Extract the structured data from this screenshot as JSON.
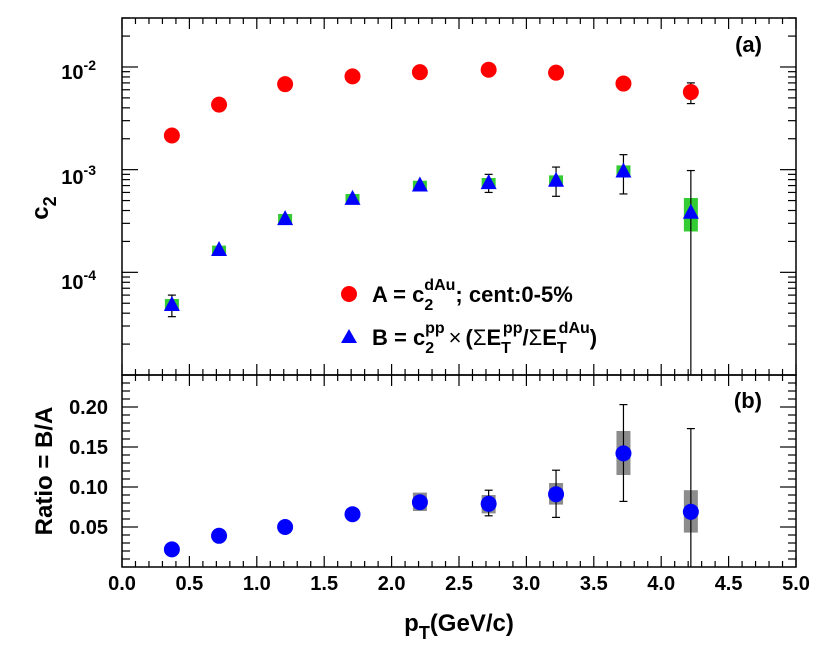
{
  "chart_data": [
    {
      "panel": "(a)",
      "type": "scatter",
      "y_scale": "log",
      "ylabel": "c",
      "ylabel_sub": "2",
      "ylim": [
        1e-05,
        0.03
      ],
      "xlim": [
        0,
        5.0
      ],
      "y_tick_labels": [
        {
          "value": 0.0001,
          "base": "10",
          "exp": "-4"
        },
        {
          "value": 0.001,
          "base": "10",
          "exp": "-3"
        },
        {
          "value": 0.01,
          "base": "10",
          "exp": "-2"
        }
      ],
      "series": [
        {
          "name": "A",
          "legend": {
            "lhs": "A = c",
            "sub": "2",
            "sup": "dAu",
            "rest": "; cent:0-5%"
          },
          "marker": "circle",
          "color": "#ff0000",
          "x": [
            0.37,
            0.72,
            1.21,
            1.71,
            2.21,
            2.72,
            3.22,
            3.72,
            4.22
          ],
          "y": [
            0.00215,
            0.0043,
            0.0068,
            0.0081,
            0.0089,
            0.0094,
            0.0088,
            0.0069,
            0.0057
          ],
          "err_lo": [
            null,
            null,
            null,
            null,
            null,
            null,
            null,
            null,
            0.0044
          ],
          "err_hi": [
            null,
            null,
            null,
            null,
            null,
            null,
            null,
            null,
            0.007
          ]
        },
        {
          "name": "B",
          "legend": {
            "lhs": "B = c",
            "sub": "2",
            "sup": "pp",
            "times": "×",
            "paren_open": "(",
            "sigma": "Σ",
            "e1": "E",
            "e1_sub": "T",
            "e1_sup": "pp",
            "slash": "/",
            "e2": "E",
            "e2_sub": "T",
            "e2_sup": "dAu",
            "paren_close": ")"
          },
          "marker": "triangle",
          "color": "#0000ff",
          "syst_color": "#33cc33",
          "x": [
            0.37,
            0.72,
            1.21,
            1.71,
            2.21,
            2.72,
            3.22,
            3.72,
            4.22
          ],
          "y": [
            4.8e-05,
            0.000165,
            0.00033,
            0.00052,
            0.0007,
            0.00074,
            0.00078,
            0.00096,
            0.00038
          ],
          "stat_lo": [
            3.7e-05,
            null,
            null,
            null,
            null,
            0.0006,
            0.00055,
            0.00058,
            1e-05
          ],
          "stat_hi": [
            6e-05,
            null,
            null,
            null,
            null,
            0.0009,
            0.00106,
            0.0014,
            0.00098
          ],
          "syst_lo": [
            4.2e-05,
            0.000148,
            0.0003,
            0.00047,
            0.00063,
            0.00066,
            0.00069,
            0.00084,
            0.00025
          ],
          "syst_hi": [
            5.5e-05,
            0.000182,
            0.00037,
            0.00058,
            0.00078,
            0.00083,
            0.00088,
            0.0011,
            0.00053
          ]
        }
      ]
    },
    {
      "panel": "(b)",
      "type": "scatter",
      "ylabel": "Ratio = B/A",
      "xlabel": "p",
      "xlabel_sub": "T",
      "xlabel_rest": "(GeV/c)",
      "xlim": [
        0,
        5.0
      ],
      "ylim": [
        0.0,
        0.24
      ],
      "x_ticks": [
        "0.0",
        "0.5",
        "1.0",
        "1.5",
        "2.0",
        "2.5",
        "3.0",
        "3.5",
        "4.0",
        "4.5",
        "5.0"
      ],
      "y_ticks": [
        "0.05",
        "0.10",
        "0.15",
        "0.20"
      ],
      "series": [
        {
          "name": "B/A",
          "marker": "circle",
          "color": "#0000ff",
          "syst_color": "#8c8c8c",
          "x": [
            0.37,
            0.72,
            1.21,
            1.71,
            2.21,
            2.72,
            3.22,
            3.72,
            4.22
          ],
          "y": [
            0.022,
            0.039,
            0.05,
            0.066,
            0.081,
            0.079,
            0.091,
            0.142,
            0.069
          ],
          "stat_lo": [
            null,
            null,
            null,
            null,
            null,
            0.064,
            0.062,
            0.082,
            0.0
          ],
          "stat_hi": [
            null,
            null,
            null,
            null,
            null,
            0.096,
            0.121,
            0.203,
            0.173
          ],
          "syst_lo": [
            null,
            null,
            null,
            null,
            0.07,
            0.067,
            0.078,
            0.115,
            0.043
          ],
          "syst_hi": [
            null,
            null,
            null,
            null,
            0.093,
            0.09,
            0.105,
            0.17,
            0.096
          ]
        }
      ]
    }
  ]
}
